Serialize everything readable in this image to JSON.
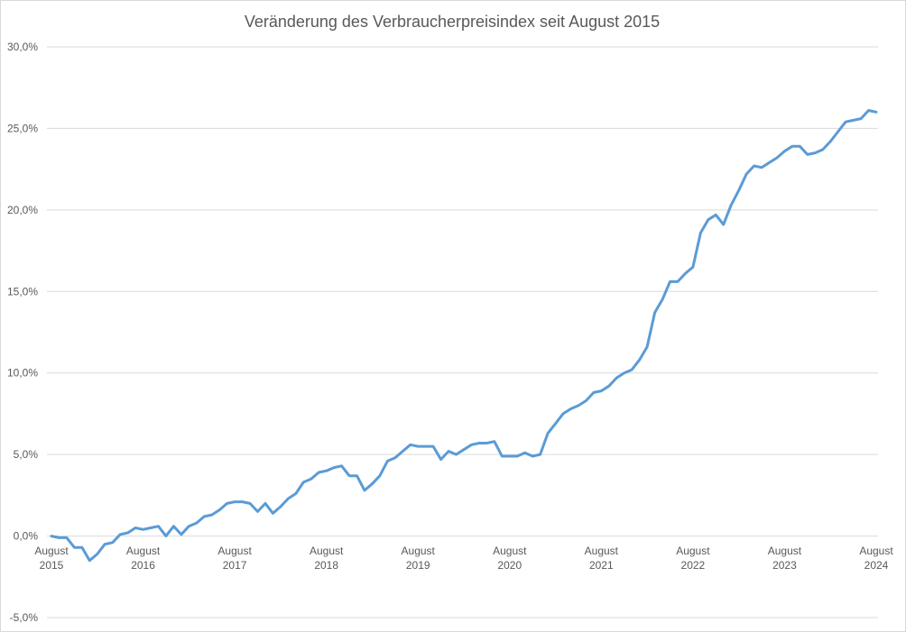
{
  "chart_data": {
    "type": "line",
    "title": "Veränderung des Verbraucherpreisindex seit August 2015",
    "xlabel": "",
    "ylabel": "",
    "ylim": [
      -5,
      30
    ],
    "y_ticks": [
      "30,0%",
      "25,0%",
      "20,0%",
      "15,0%",
      "10,0%",
      "5,0%",
      "0,0%",
      "-5,0%"
    ],
    "y_tick_values": [
      30,
      25,
      20,
      15,
      10,
      5,
      0,
      -5
    ],
    "x_ticks": [
      {
        "month": "August",
        "year": "2015"
      },
      {
        "month": "August",
        "year": "2016"
      },
      {
        "month": "August",
        "year": "2017"
      },
      {
        "month": "August",
        "year": "2018"
      },
      {
        "month": "August",
        "year": "2019"
      },
      {
        "month": "August",
        "year": "2020"
      },
      {
        "month": "August",
        "year": "2021"
      },
      {
        "month": "August",
        "year": "2022"
      },
      {
        "month": "August",
        "year": "2023"
      },
      {
        "month": "August",
        "year": "2024"
      }
    ],
    "grid": true,
    "color": "#5b9bd5",
    "series": [
      {
        "values": [
          0.0,
          -0.1,
          -0.1,
          -0.7,
          -0.7,
          -1.5,
          -1.1,
          -0.5,
          -0.4,
          0.1,
          0.2,
          0.5,
          0.4,
          0.5,
          0.6,
          0.0,
          0.6,
          0.1,
          0.6,
          0.8,
          1.2,
          1.3,
          1.6,
          2.0,
          2.1,
          2.1,
          2.0,
          1.5,
          2.0,
          1.4,
          1.8,
          2.3,
          2.6,
          3.3,
          3.5,
          3.9,
          4.0,
          4.2,
          4.3,
          3.7,
          3.7,
          2.8,
          3.2,
          3.7,
          4.6,
          4.8,
          5.2,
          5.6,
          5.5,
          5.5,
          5.5,
          4.7,
          5.2,
          5.0,
          5.3,
          5.6,
          5.7,
          5.7,
          5.8,
          4.9,
          4.9,
          4.9,
          5.1,
          4.9,
          5.0,
          6.3,
          6.9,
          7.5,
          7.8,
          8.0,
          8.3,
          8.8,
          8.9,
          9.2,
          9.7,
          10.0,
          10.2,
          10.8,
          11.6,
          13.7,
          14.5,
          15.6,
          15.6,
          16.1,
          16.5,
          18.6,
          19.4,
          19.7,
          19.1,
          20.3,
          21.2,
          22.2,
          22.7,
          22.6,
          22.9,
          23.2,
          23.6,
          23.9,
          23.9,
          23.4,
          23.5,
          23.7,
          24.2,
          24.8,
          25.4,
          25.5,
          25.6,
          26.1,
          26.0
        ]
      }
    ]
  }
}
